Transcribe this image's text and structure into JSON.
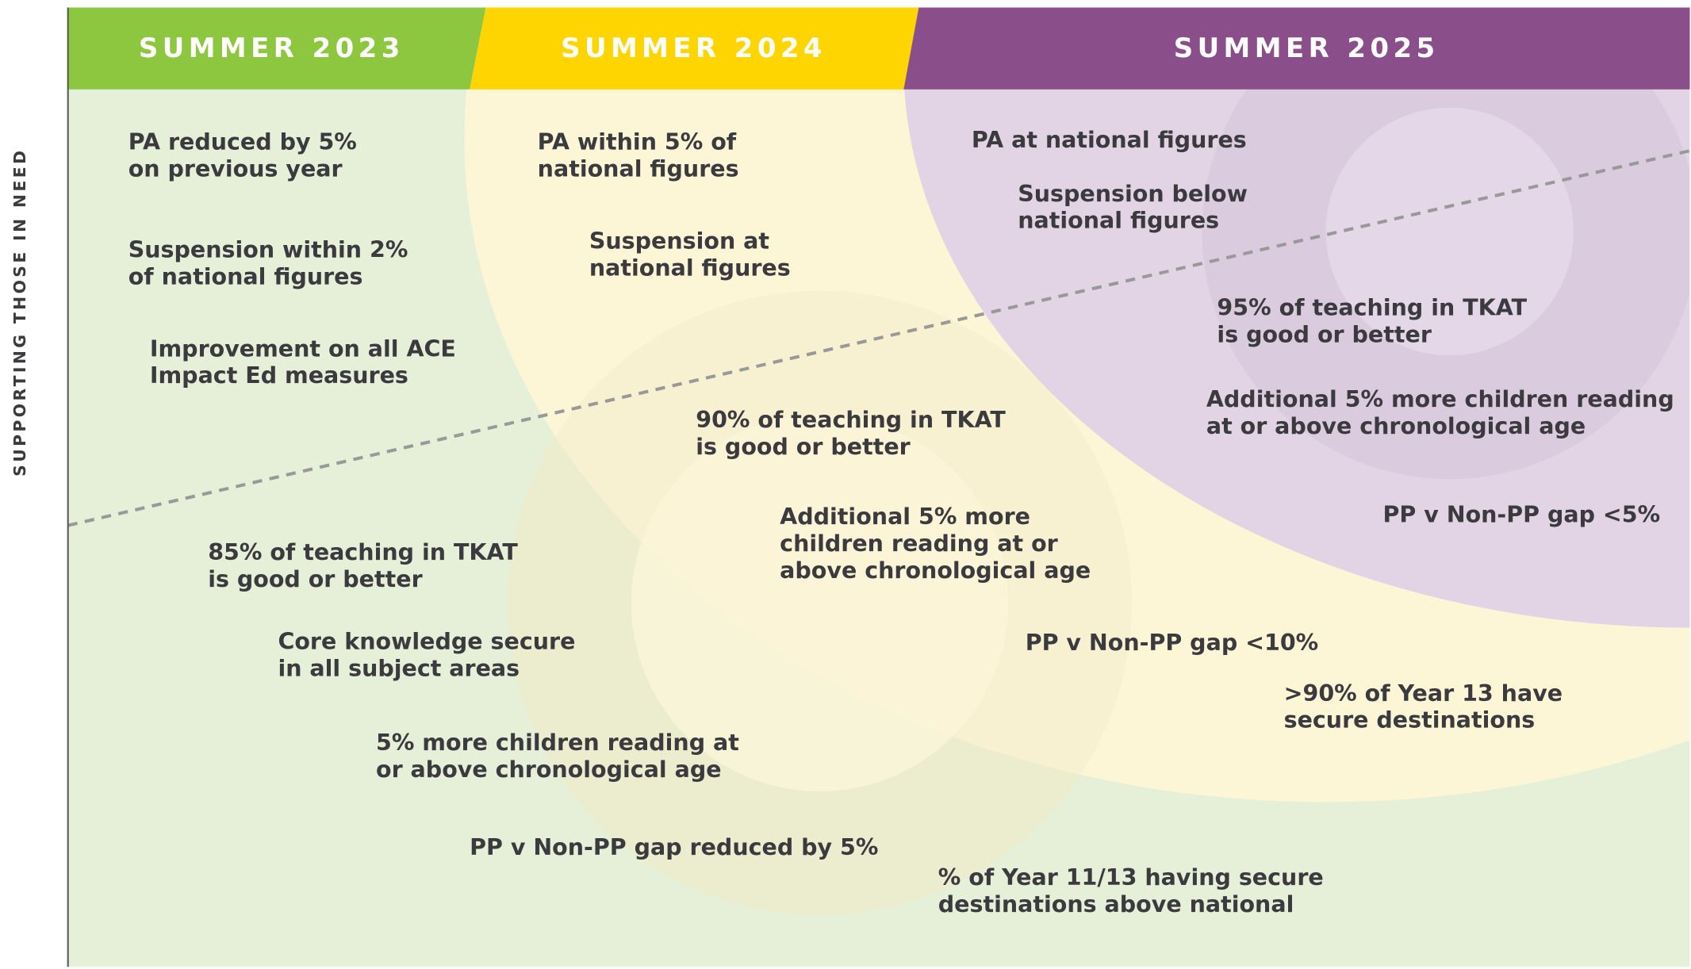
{
  "axis_label": "SUPPORTING THOSE IN NEED",
  "columns": [
    {
      "heading": "SUMMER 2023",
      "goals": [
        [
          "PA reduced by 5%",
          "on previous year"
        ],
        [
          "Suspension within 2%",
          "of national figures"
        ],
        [
          "Improvement on all ACE",
          "Impact Ed measures"
        ],
        [
          "85% of teaching in TKAT",
          "is good or better"
        ],
        [
          "Core knowledge secure",
          "in all subject areas"
        ],
        [
          "5% more children reading at",
          "or above chronological age"
        ],
        [
          "PP v Non-PP gap reduced by 5%"
        ],
        [
          "% of Year 11/13 having secure",
          "destinations above national"
        ]
      ]
    },
    {
      "heading": "SUMMER 2024",
      "goals": [
        [
          "PA within 5% of",
          "national figures"
        ],
        [
          "Suspension at",
          "national figures"
        ],
        [
          "90% of teaching in TKAT",
          "is good or better"
        ],
        [
          "Additional 5% more",
          "children reading at or",
          "above chronological age"
        ],
        [
          "PP v Non-PP gap <10%"
        ],
        [
          ">90% of Year 13 have",
          "secure destinations"
        ]
      ]
    },
    {
      "heading": "SUMMER 2025",
      "goals": [
        [
          "PA at national figures"
        ],
        [
          "Suspension below",
          "national figures"
        ],
        [
          "95% of teaching in TKAT",
          "is good or better"
        ],
        [
          "Additional 5% more children reading",
          "at or above chronological age"
        ],
        [
          "PP v Non-PP gap <5%"
        ]
      ]
    }
  ]
}
